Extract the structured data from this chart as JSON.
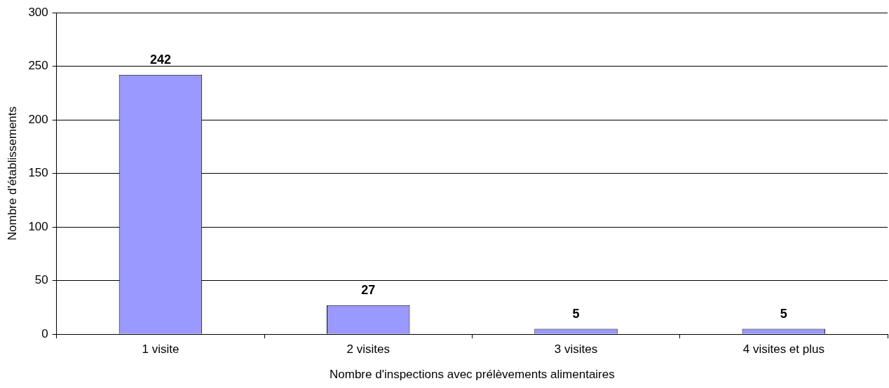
{
  "chart_data": {
    "type": "bar",
    "xlabel": "Nombre d'inspections avec prélèvements alimentaires",
    "ylabel": "Nombre d'établissements",
    "categories": [
      "1 visite",
      "2 visites",
      "3 visites",
      "4 visites et plus"
    ],
    "values": [
      242,
      27,
      5,
      5
    ],
    "color": "#9999ff",
    "ylim": [
      0,
      300
    ],
    "yticks": [
      0,
      50,
      100,
      150,
      200,
      250,
      300
    ],
    "grid": "y",
    "data_labels": true,
    "legend": false
  }
}
